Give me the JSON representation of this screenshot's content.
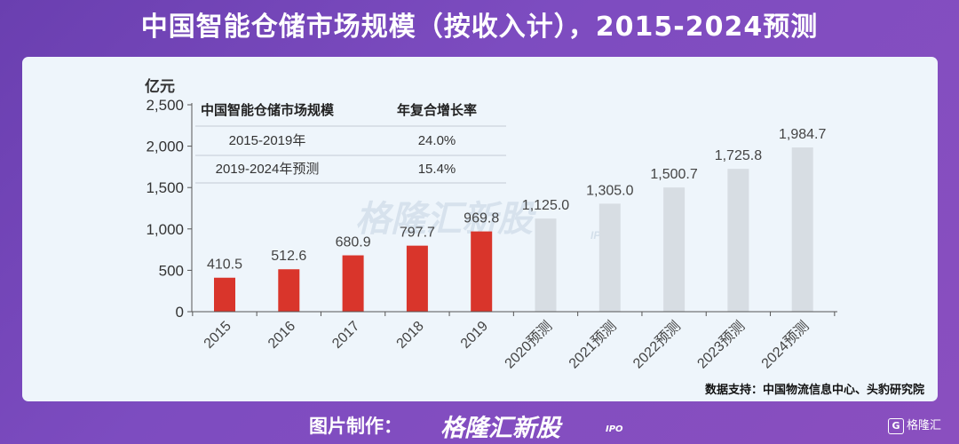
{
  "title": "中国智能仓储市场规模（按收入计），2015-2024预测",
  "footer": {
    "label": "图片制作：",
    "logo": "格隆汇新股",
    "logo_sub": "IPO",
    "corner_badge": "G",
    "corner_text": "格隆汇"
  },
  "watermark": {
    "text": "格隆汇新股",
    "sub": "IPO"
  },
  "source": "数据支持：中国物流信息中心、头豹研究院",
  "table": {
    "headers": [
      "中国智能仓储市场规模",
      "年复合增长率"
    ],
    "rows": [
      [
        "2015-2019年",
        "24.0%"
      ],
      [
        "2019-2024年预测",
        "15.4%"
      ]
    ]
  },
  "chart_data": {
    "type": "bar",
    "ylabel": "亿元",
    "ylim": [
      0,
      2500
    ],
    "yticks": [
      "0",
      "500",
      "1,000",
      "1,500",
      "2,000",
      "2,500"
    ],
    "categories": [
      "2015",
      "2016",
      "2017",
      "2018",
      "2019",
      "2020预测",
      "2021预测",
      "2022预测",
      "2023预测",
      "2024预测"
    ],
    "values": [
      410.5,
      512.6,
      680.9,
      797.7,
      969.8,
      1125.0,
      1305.0,
      1500.7,
      1725.8,
      1984.7
    ],
    "value_labels": [
      "410.5",
      "512.6",
      "680.9",
      "797.7",
      "969.8",
      "1,125.0",
      "1,305.0",
      "1,500.7",
      "1,725.8",
      "1,984.7"
    ],
    "colors": {
      "actual": "#d9352b",
      "forecast": "#d7dde3"
    },
    "grid": false,
    "legend": "none"
  }
}
